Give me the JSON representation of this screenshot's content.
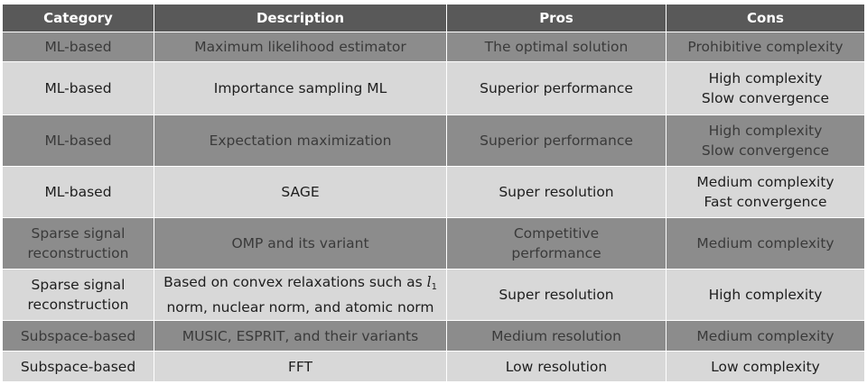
{
  "table": {
    "headers": [
      "Category",
      "Description",
      "Pros",
      "Cons"
    ],
    "rows": [
      {
        "category": [
          "ML-based"
        ],
        "description": [
          "Maximum likelihood estimator"
        ],
        "pros": [
          "The optimal solution"
        ],
        "cons": [
          "Prohibitive complexity"
        ]
      },
      {
        "category": [
          "ML-based"
        ],
        "description": [
          "Importance sampling ML"
        ],
        "pros": [
          "Superior performance"
        ],
        "cons": [
          "High complexity",
          "Slow convergence"
        ]
      },
      {
        "category": [
          "ML-based"
        ],
        "description": [
          "Expectation maximization"
        ],
        "pros": [
          "Superior performance"
        ],
        "cons": [
          "High complexity",
          "Slow convergence"
        ]
      },
      {
        "category": [
          "ML-based"
        ],
        "description": [
          "SAGE"
        ],
        "pros": [
          "Super resolution"
        ],
        "cons": [
          "Medium complexity",
          "Fast convergence"
        ]
      },
      {
        "category": [
          "Sparse signal",
          "reconstruction"
        ],
        "description": [
          "OMP and its variant"
        ],
        "pros": [
          "Competitive",
          "performance"
        ],
        "cons": [
          "Medium complexity"
        ]
      },
      {
        "category": [
          "Sparse signal",
          "reconstruction"
        ],
        "description_l1": {
          "prefix": "Based on convex relaxations such as",
          "symbol": "l",
          "subscript": "1",
          "line2": "norm, nuclear norm, and atomic norm"
        },
        "pros": [
          "Super resolution"
        ],
        "cons": [
          "High complexity"
        ]
      },
      {
        "category": [
          "Subspace-based"
        ],
        "description": [
          "MUSIC, ESPRIT, and their variants"
        ],
        "pros": [
          "Medium resolution"
        ],
        "cons": [
          "Medium complexity"
        ]
      },
      {
        "category": [
          "Subspace-based"
        ],
        "description": [
          "FFT"
        ],
        "pros": [
          "Low resolution"
        ],
        "cons": [
          "Low complexity"
        ]
      }
    ]
  }
}
